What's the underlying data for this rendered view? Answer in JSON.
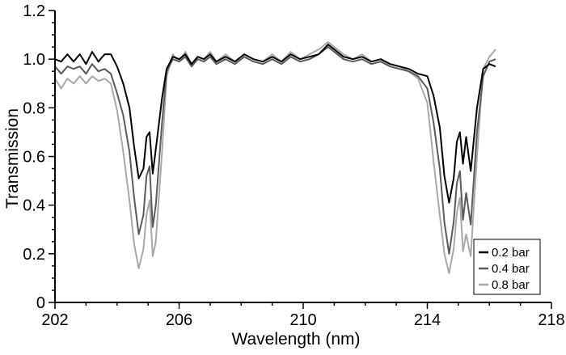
{
  "chart_data": {
    "type": "line",
    "xlabel": "Wavelength (nm)",
    "ylabel": "Transmission",
    "xlim": [
      202,
      218
    ],
    "ylim": [
      0,
      1.2
    ],
    "xticks": [
      202,
      206,
      210,
      214,
      218
    ],
    "xtick_labels": [
      "202",
      "206",
      "210",
      "214",
      "218"
    ],
    "yticks": [
      0,
      0.2,
      0.4,
      0.6,
      0.8,
      1.0,
      1.2
    ],
    "ytick_labels": [
      "0",
      "0.2",
      "0.4",
      "0.6",
      "0.8",
      "1.0",
      "1.2"
    ],
    "grid": false,
    "legend_position": "bottom-right",
    "series": [
      {
        "name": "0.2 bar",
        "color": "#000000",
        "points": [
          [
            202.0,
            1.0
          ],
          [
            202.2,
            0.99
          ],
          [
            202.4,
            1.02
          ],
          [
            202.6,
            0.99
          ],
          [
            202.8,
            1.02
          ],
          [
            203.0,
            0.98
          ],
          [
            203.2,
            1.03
          ],
          [
            203.4,
            0.99
          ],
          [
            203.6,
            1.02
          ],
          [
            203.8,
            1.02
          ],
          [
            204.0,
            0.97
          ],
          [
            204.2,
            0.9
          ],
          [
            204.4,
            0.8
          ],
          [
            204.55,
            0.64
          ],
          [
            204.7,
            0.51
          ],
          [
            204.85,
            0.55
          ],
          [
            204.95,
            0.68
          ],
          [
            205.05,
            0.7
          ],
          [
            205.15,
            0.53
          ],
          [
            205.25,
            0.63
          ],
          [
            205.45,
            0.84
          ],
          [
            205.6,
            0.96
          ],
          [
            205.8,
            1.01
          ],
          [
            206.0,
            1.0
          ],
          [
            206.2,
            1.02
          ],
          [
            206.4,
            0.98
          ],
          [
            206.6,
            1.01
          ],
          [
            206.8,
            1.0
          ],
          [
            207.0,
            1.02
          ],
          [
            207.2,
            0.99
          ],
          [
            207.5,
            1.01
          ],
          [
            207.8,
            0.99
          ],
          [
            208.1,
            1.02
          ],
          [
            208.4,
            1.0
          ],
          [
            208.7,
            0.99
          ],
          [
            209.0,
            1.01
          ],
          [
            209.3,
            0.99
          ],
          [
            209.6,
            1.02
          ],
          [
            209.9,
            1.0
          ],
          [
            210.2,
            1.01
          ],
          [
            210.5,
            1.02
          ],
          [
            210.8,
            1.06
          ],
          [
            211.0,
            1.04
          ],
          [
            211.3,
            1.01
          ],
          [
            211.6,
            1.0
          ],
          [
            211.9,
            1.01
          ],
          [
            212.2,
            0.99
          ],
          [
            212.5,
            1.0
          ],
          [
            212.8,
            0.98
          ],
          [
            213.1,
            0.97
          ],
          [
            213.4,
            0.96
          ],
          [
            213.7,
            0.94
          ],
          [
            214.0,
            0.93
          ],
          [
            214.2,
            0.85
          ],
          [
            214.4,
            0.72
          ],
          [
            214.55,
            0.52
          ],
          [
            214.7,
            0.41
          ],
          [
            214.85,
            0.51
          ],
          [
            214.95,
            0.66
          ],
          [
            215.05,
            0.7
          ],
          [
            215.15,
            0.57
          ],
          [
            215.25,
            0.68
          ],
          [
            215.4,
            0.54
          ],
          [
            215.6,
            0.8
          ],
          [
            215.8,
            0.96
          ],
          [
            216.0,
            0.98
          ],
          [
            216.2,
            0.97
          ]
        ]
      },
      {
        "name": "0.4 bar",
        "color": "#5a5a5a",
        "points": [
          [
            202.0,
            0.97
          ],
          [
            202.2,
            0.94
          ],
          [
            202.4,
            0.97
          ],
          [
            202.6,
            0.96
          ],
          [
            202.8,
            0.97
          ],
          [
            203.0,
            0.94
          ],
          [
            203.2,
            0.98
          ],
          [
            203.4,
            0.95
          ],
          [
            203.6,
            0.96
          ],
          [
            203.8,
            0.94
          ],
          [
            204.0,
            0.86
          ],
          [
            204.2,
            0.77
          ],
          [
            204.4,
            0.62
          ],
          [
            204.55,
            0.43
          ],
          [
            204.7,
            0.28
          ],
          [
            204.85,
            0.36
          ],
          [
            204.95,
            0.52
          ],
          [
            205.05,
            0.56
          ],
          [
            205.15,
            0.31
          ],
          [
            205.25,
            0.4
          ],
          [
            205.45,
            0.74
          ],
          [
            205.6,
            0.95
          ],
          [
            205.8,
            1.0
          ],
          [
            206.0,
            0.99
          ],
          [
            206.2,
            1.01
          ],
          [
            206.4,
            0.97
          ],
          [
            206.6,
            1.0
          ],
          [
            206.8,
            0.99
          ],
          [
            207.0,
            1.01
          ],
          [
            207.2,
            0.98
          ],
          [
            207.5,
            1.0
          ],
          [
            207.8,
            0.98
          ],
          [
            208.1,
            1.01
          ],
          [
            208.4,
            0.99
          ],
          [
            208.7,
            0.98
          ],
          [
            209.0,
            1.0
          ],
          [
            209.3,
            0.98
          ],
          [
            209.6,
            1.01
          ],
          [
            209.9,
            0.99
          ],
          [
            210.2,
            1.0
          ],
          [
            210.5,
            1.02
          ],
          [
            210.8,
            1.05
          ],
          [
            211.0,
            1.03
          ],
          [
            211.3,
            1.0
          ],
          [
            211.6,
            0.99
          ],
          [
            211.9,
            1.0
          ],
          [
            212.2,
            0.98
          ],
          [
            212.5,
            0.99
          ],
          [
            212.8,
            0.97
          ],
          [
            213.1,
            0.96
          ],
          [
            213.4,
            0.95
          ],
          [
            213.7,
            0.93
          ],
          [
            214.0,
            0.88
          ],
          [
            214.2,
            0.74
          ],
          [
            214.4,
            0.55
          ],
          [
            214.55,
            0.33
          ],
          [
            214.7,
            0.2
          ],
          [
            214.85,
            0.33
          ],
          [
            214.95,
            0.49
          ],
          [
            215.05,
            0.54
          ],
          [
            215.15,
            0.34
          ],
          [
            215.25,
            0.45
          ],
          [
            215.4,
            0.32
          ],
          [
            215.6,
            0.7
          ],
          [
            215.8,
            0.93
          ],
          [
            216.0,
            0.99
          ],
          [
            216.2,
            1.0
          ]
        ]
      },
      {
        "name": "0.8 bar",
        "color": "#a8a8a8",
        "points": [
          [
            202.0,
            0.92
          ],
          [
            202.2,
            0.88
          ],
          [
            202.4,
            0.92
          ],
          [
            202.6,
            0.9
          ],
          [
            202.8,
            0.93
          ],
          [
            203.0,
            0.9
          ],
          [
            203.2,
            0.93
          ],
          [
            203.4,
            0.91
          ],
          [
            203.6,
            0.92
          ],
          [
            203.8,
            0.9
          ],
          [
            204.0,
            0.79
          ],
          [
            204.2,
            0.62
          ],
          [
            204.4,
            0.42
          ],
          [
            204.55,
            0.24
          ],
          [
            204.7,
            0.14
          ],
          [
            204.85,
            0.22
          ],
          [
            204.95,
            0.36
          ],
          [
            205.05,
            0.42
          ],
          [
            205.15,
            0.19
          ],
          [
            205.25,
            0.25
          ],
          [
            205.45,
            0.62
          ],
          [
            205.6,
            0.93
          ],
          [
            205.8,
            1.02
          ],
          [
            206.0,
            0.99
          ],
          [
            206.2,
            1.03
          ],
          [
            206.4,
            0.98
          ],
          [
            206.6,
            1.01
          ],
          [
            206.8,
            1.0
          ],
          [
            207.0,
            1.03
          ],
          [
            207.2,
            0.99
          ],
          [
            207.5,
            1.02
          ],
          [
            207.8,
            0.99
          ],
          [
            208.1,
            1.02
          ],
          [
            208.4,
            1.0
          ],
          [
            208.7,
            0.99
          ],
          [
            209.0,
            1.02
          ],
          [
            209.3,
            0.99
          ],
          [
            209.6,
            1.03
          ],
          [
            209.9,
            1.0
          ],
          [
            210.2,
            1.02
          ],
          [
            210.5,
            1.04
          ],
          [
            210.8,
            1.07
          ],
          [
            211.0,
            1.05
          ],
          [
            211.3,
            1.02
          ],
          [
            211.6,
            1.0
          ],
          [
            211.9,
            1.02
          ],
          [
            212.2,
            0.99
          ],
          [
            212.5,
            1.0
          ],
          [
            212.8,
            0.98
          ],
          [
            213.1,
            0.97
          ],
          [
            213.4,
            0.95
          ],
          [
            213.7,
            0.92
          ],
          [
            214.0,
            0.82
          ],
          [
            214.2,
            0.58
          ],
          [
            214.4,
            0.36
          ],
          [
            214.55,
            0.2
          ],
          [
            214.7,
            0.12
          ],
          [
            214.85,
            0.22
          ],
          [
            214.95,
            0.37
          ],
          [
            215.05,
            0.43
          ],
          [
            215.15,
            0.21
          ],
          [
            215.25,
            0.28
          ],
          [
            215.4,
            0.19
          ],
          [
            215.6,
            0.6
          ],
          [
            215.8,
            0.96
          ],
          [
            216.0,
            1.01
          ],
          [
            216.2,
            1.04
          ]
        ]
      }
    ]
  }
}
